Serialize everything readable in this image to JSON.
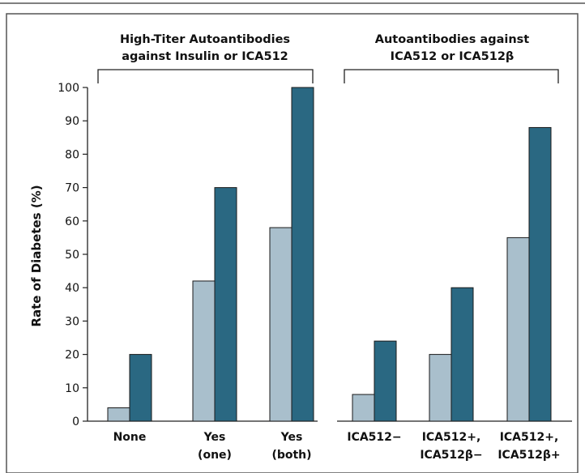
{
  "chart_data": {
    "type": "bar",
    "ylabel": "Rate of Diabetes (%)",
    "ylim": [
      0,
      100
    ],
    "yticks": [
      0,
      10,
      20,
      30,
      40,
      50,
      60,
      70,
      80,
      90,
      100
    ],
    "grid": false,
    "groups": [
      {
        "title_line1": "High-Titer Autoantibodies",
        "title_line2": "against Insulin or ICA512",
        "categories": [
          {
            "line1": "None",
            "line2": "",
            "light": 4,
            "dark": 20
          },
          {
            "line1": "Yes",
            "line2": "(one)",
            "light": 42,
            "dark": 70
          },
          {
            "line1": "Yes",
            "line2": "(both)",
            "light": 58,
            "dark": 100
          }
        ]
      },
      {
        "title_line1": "Autoantibodies against",
        "title_line2": "ICA512 or ICA512β",
        "categories": [
          {
            "line1": "ICA512−",
            "line2": "",
            "light": 8,
            "dark": 24
          },
          {
            "line1": "ICA512+,",
            "line2": "ICA512β−",
            "light": 20,
            "dark": 40
          },
          {
            "line1": "ICA512+,",
            "line2": "ICA512β+",
            "light": 55,
            "dark": 88
          }
        ]
      }
    ],
    "colors": {
      "light": "#a9bfcc",
      "dark": "#2a6882",
      "frame": "#555555",
      "axis": "#222222"
    }
  }
}
